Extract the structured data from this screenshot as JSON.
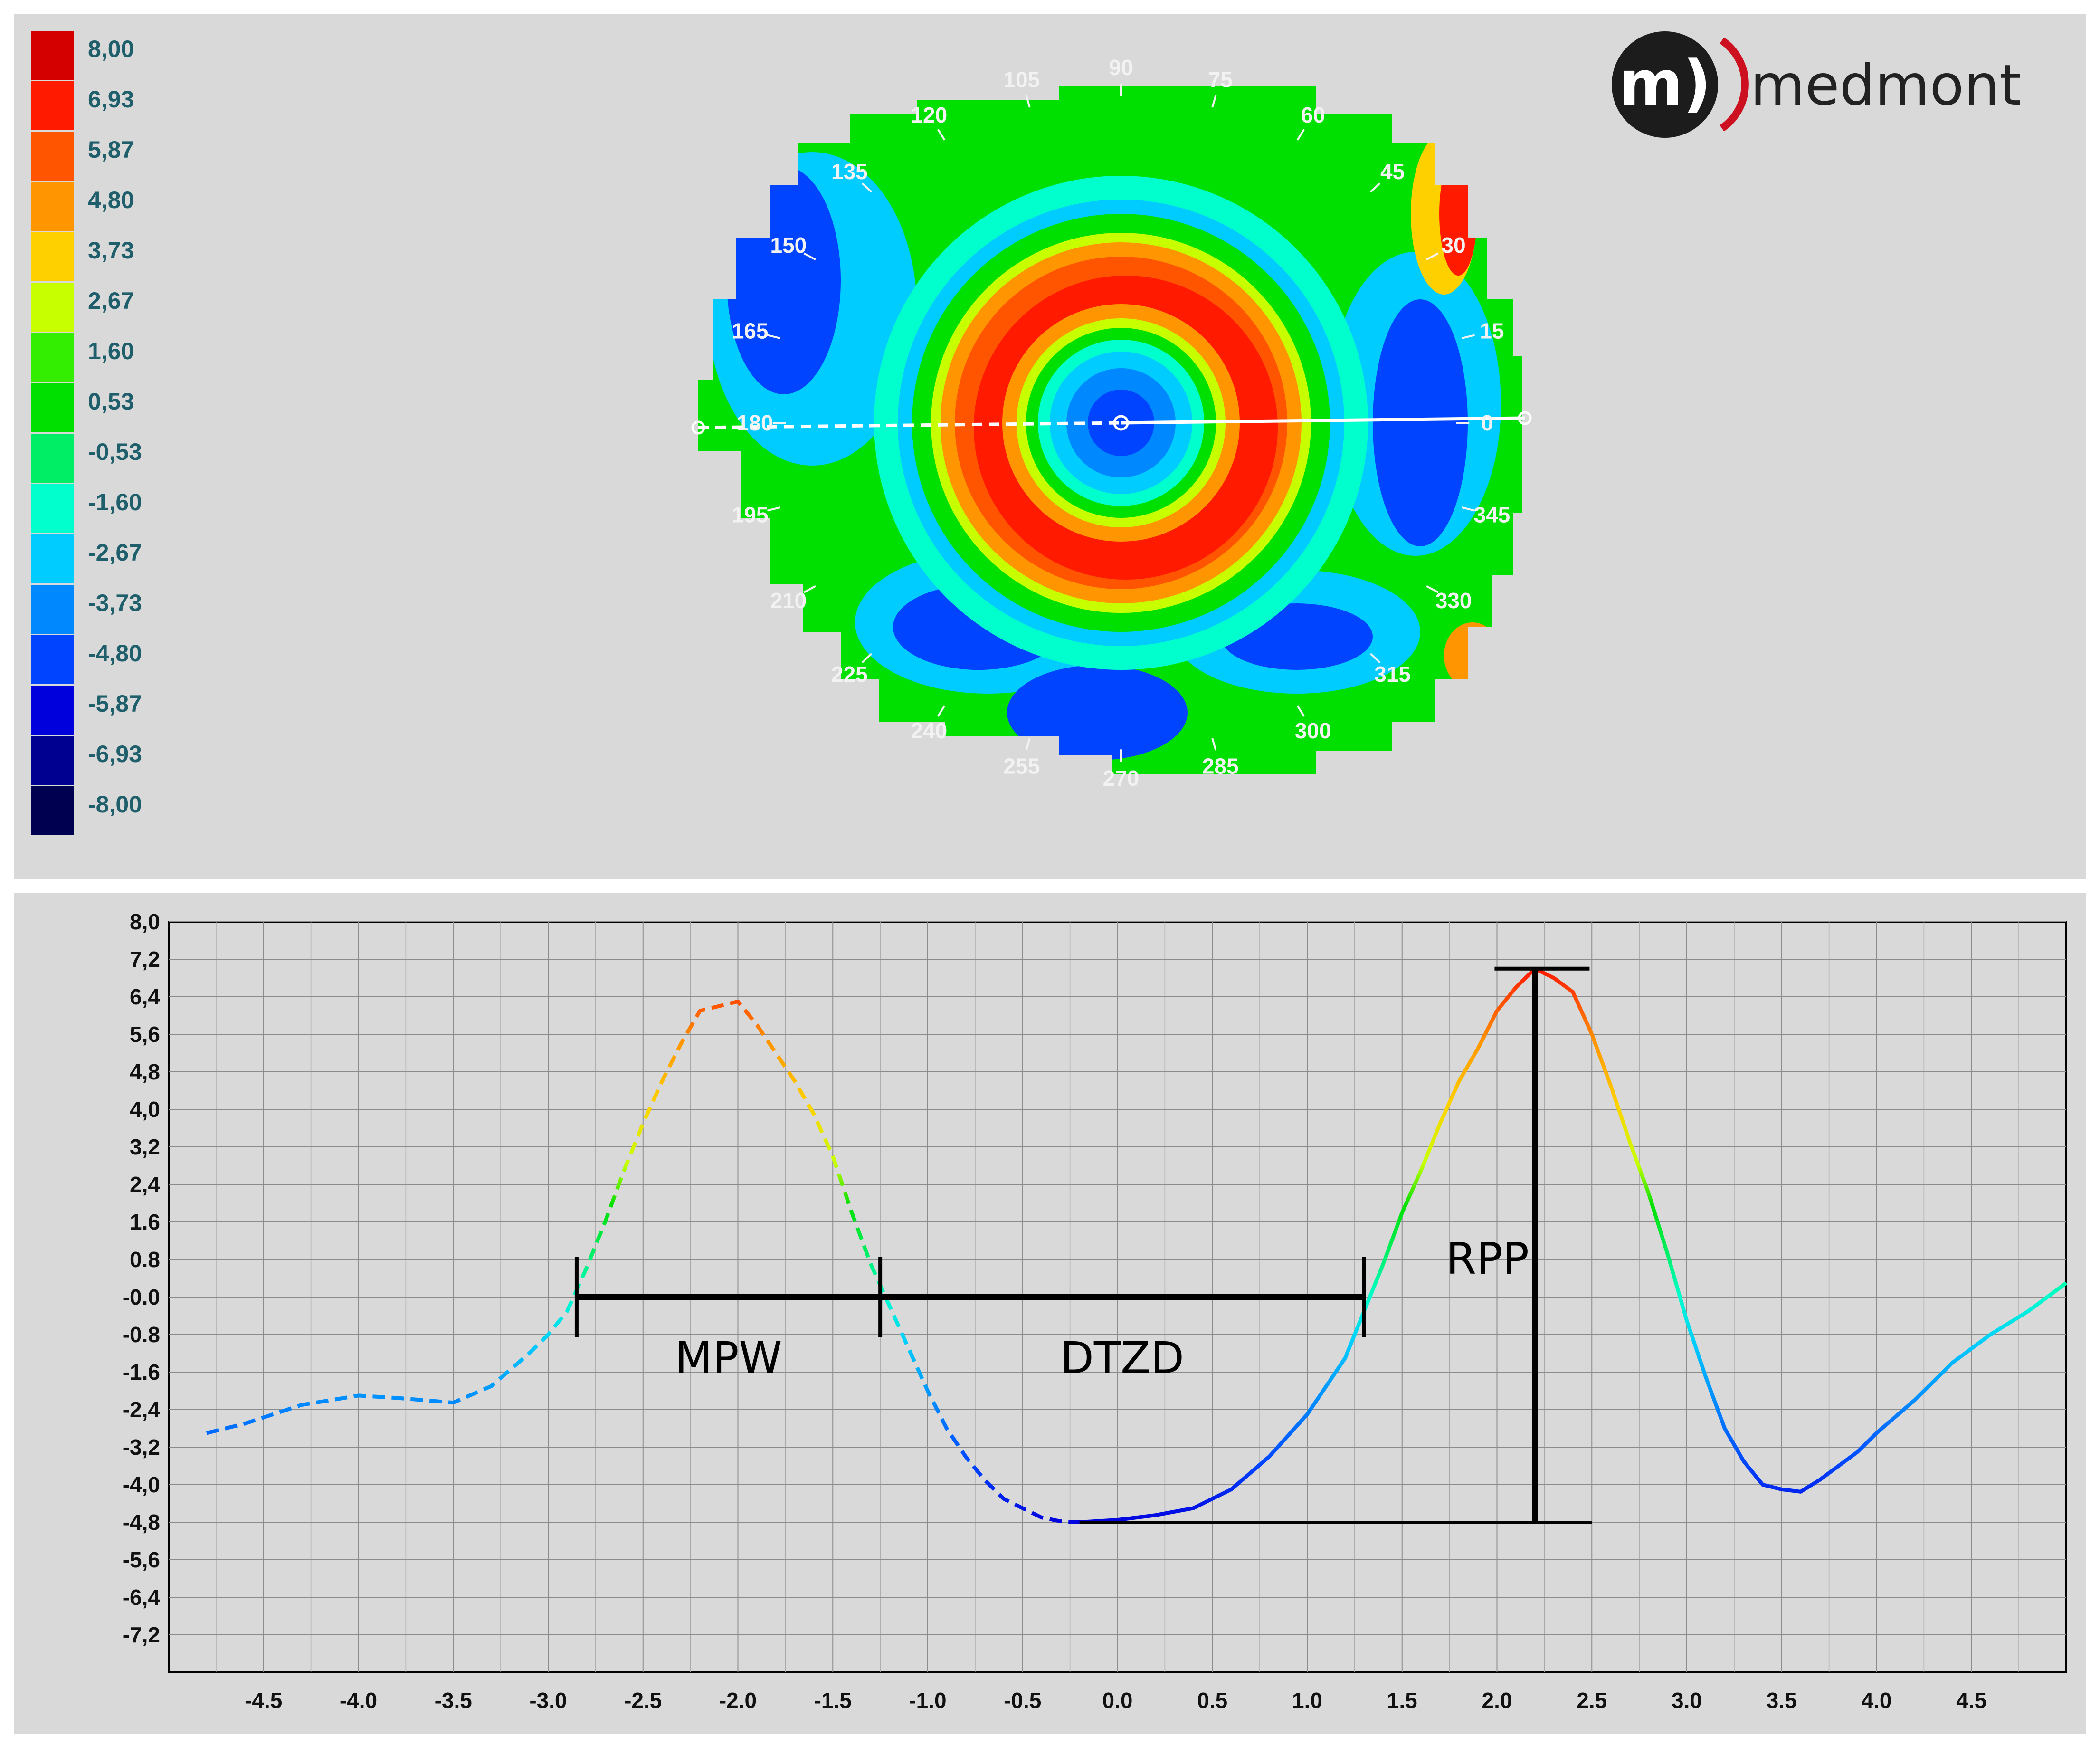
{
  "brand": {
    "name": "medmont",
    "mark": "m)"
  },
  "legend": {
    "entries": [
      {
        "label": "8,00",
        "color": "#d40000"
      },
      {
        "label": "6,93",
        "color": "#ff1a00"
      },
      {
        "label": "5,87",
        "color": "#ff5500"
      },
      {
        "label": "4,80",
        "color": "#ff9500"
      },
      {
        "label": "3,73",
        "color": "#ffd000"
      },
      {
        "label": "2,67",
        "color": "#c8ff00"
      },
      {
        "label": "1,60",
        "color": "#33ee00"
      },
      {
        "label": "0,53",
        "color": "#00e000"
      },
      {
        "label": "-0,53",
        "color": "#00ee66"
      },
      {
        "label": "-1,60",
        "color": "#00ffcc"
      },
      {
        "label": "-2,67",
        "color": "#00ccff"
      },
      {
        "label": "-3,73",
        "color": "#0088ff"
      },
      {
        "label": "-4,80",
        "color": "#0044ff"
      },
      {
        "label": "-5,87",
        "color": "#0000dd"
      },
      {
        "label": "-6,93",
        "color": "#000090"
      },
      {
        "label": "-8,00",
        "color": "#000050"
      }
    ]
  },
  "map": {
    "degree_labels": [
      "0",
      "15",
      "30",
      "45",
      "60",
      "75",
      "90",
      "105",
      "120",
      "135",
      "150",
      "165",
      "180",
      "195",
      "210",
      "225",
      "240",
      "255",
      "270",
      "285",
      "300",
      "315",
      "330",
      "345"
    ]
  },
  "chart_data": {
    "type": "line",
    "xlim": [
      -5.0,
      5.0
    ],
    "ylim": [
      -8.0,
      8.0
    ],
    "grid": true,
    "x_ticks": [
      -4.5,
      -4.0,
      -3.5,
      -3.0,
      -2.5,
      -2.0,
      -1.5,
      -1.0,
      -0.5,
      0.0,
      0.5,
      1.0,
      1.5,
      2.0,
      2.5,
      3.0,
      3.5,
      4.0,
      4.5
    ],
    "x_tick_labels": [
      "-4.5",
      "-4.0",
      "-3.5",
      "-3.0",
      "-2.5",
      "-2.0",
      "-1.5",
      "-1.0",
      "-0.5",
      "0.0",
      "0.5",
      "1.0",
      "1.5",
      "2.0",
      "2.5",
      "3.0",
      "3.5",
      "4.0",
      "4.5"
    ],
    "y_ticks": [
      8.0,
      7.2,
      6.4,
      5.6,
      4.8,
      4.0,
      3.2,
      2.4,
      1.6,
      0.8,
      0.0,
      -0.8,
      -1.6,
      -2.4,
      -3.2,
      -4.0,
      -4.8,
      -5.6,
      -6.4,
      -7.2
    ],
    "y_tick_labels": [
      "8,0",
      "7,2",
      "6,4",
      "5,6",
      "4,8",
      "4,0",
      "3,2",
      "2,4",
      "1.6",
      "0.8",
      "-0.0",
      "-0.8",
      "-1.6",
      "-2,4",
      "-3,2",
      "-4,0",
      "-4,8",
      "-5,6",
      "-6,4",
      "-7,2"
    ],
    "series": [
      {
        "style": "dashed",
        "x": [
          -4.8,
          -4.6,
          -4.3,
          -4.0,
          -3.8,
          -3.5,
          -3.3,
          -3.1,
          -3.0,
          -2.9,
          -2.8,
          -2.7,
          -2.6,
          -2.5,
          -2.4,
          -2.3,
          -2.2,
          -2.1,
          -2.0,
          -1.9,
          -1.8,
          -1.7,
          -1.6,
          -1.5,
          -1.4,
          -1.3,
          -1.2,
          -1.1,
          -1.0,
          -0.9,
          -0.8,
          -0.7,
          -0.6,
          -0.5,
          -0.4,
          -0.3,
          -0.2
        ],
        "y": [
          -2.9,
          -2.7,
          -2.3,
          -2.1,
          -2.15,
          -2.25,
          -1.9,
          -1.2,
          -0.8,
          -0.3,
          0.6,
          1.6,
          2.7,
          3.7,
          4.6,
          5.4,
          6.1,
          6.2,
          6.3,
          5.8,
          5.2,
          4.6,
          3.9,
          3.0,
          1.8,
          0.7,
          -0.2,
          -1.1,
          -2.0,
          -2.8,
          -3.4,
          -3.9,
          -4.3,
          -4.5,
          -4.7,
          -4.78,
          -4.8
        ]
      },
      {
        "style": "solid",
        "x": [
          -0.2,
          0.0,
          0.2,
          0.4,
          0.6,
          0.8,
          1.0,
          1.2,
          1.3,
          1.4,
          1.5,
          1.6,
          1.7,
          1.8,
          1.9,
          2.0,
          2.1,
          2.2,
          2.3,
          2.4,
          2.5,
          2.6,
          2.7,
          2.8,
          2.9,
          3.0,
          3.1,
          3.2,
          3.3,
          3.4,
          3.5,
          3.6,
          3.7,
          3.8,
          3.9,
          4.0,
          4.2,
          4.4,
          4.6,
          4.8,
          5.0
        ],
        "y": [
          -4.8,
          -4.75,
          -4.65,
          -4.5,
          -4.1,
          -3.4,
          -2.5,
          -1.3,
          -0.3,
          0.7,
          1.8,
          2.7,
          3.7,
          4.6,
          5.3,
          6.1,
          6.6,
          7.0,
          6.8,
          6.5,
          5.6,
          4.5,
          3.3,
          2.2,
          0.9,
          -0.5,
          -1.7,
          -2.8,
          -3.5,
          -4.0,
          -4.1,
          -4.15,
          -3.9,
          -3.6,
          -3.3,
          -2.9,
          -2.2,
          -1.4,
          -0.8,
          -0.3,
          0.3
        ]
      }
    ],
    "annotations": [
      {
        "label": "MPW",
        "x_from": -2.85,
        "x_to": -1.25,
        "y": 0.0
      },
      {
        "label": "DTZD",
        "x_from": -1.25,
        "x_to": 1.3,
        "y": 0.0
      },
      {
        "label": "RPP",
        "x": 2.2,
        "y_from": -4.8,
        "y_to": 7.0
      }
    ]
  }
}
